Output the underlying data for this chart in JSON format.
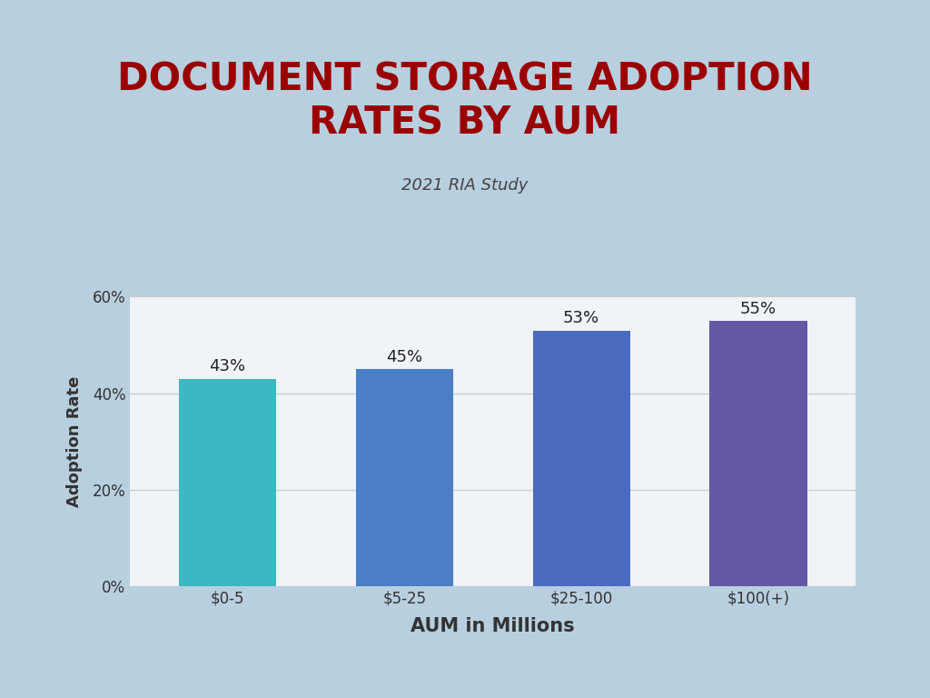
{
  "title": "DOCUMENT STORAGE ADOPTION\nRATES BY AUM",
  "subtitle": "2021 RIA Study",
  "xlabel": "AUM in Millions",
  "ylabel": "Adoption Rate",
  "categories": [
    "$0-5",
    "$5-25",
    "$25-100",
    "$100(+)"
  ],
  "values": [
    43,
    45,
    53,
    55
  ],
  "bar_colors": [
    "#3cb8c2",
    "#4a7ec7",
    "#4a6bbf",
    "#6457a6"
  ],
  "title_color": "#9b0000",
  "subtitle_color": "#444444",
  "label_color": "#222222",
  "axis_text_color": "#333333",
  "ylim": [
    0,
    60
  ],
  "yticks": [
    0,
    20,
    40,
    60
  ],
  "ytick_labels": [
    "0%",
    "20%",
    "40%",
    "60%"
  ],
  "outer_bg_color": "#b8cfe0",
  "inner_bg_color": "#f0f3f7",
  "plot_bg_color": "#f0f3f7",
  "title_fontsize": 30,
  "subtitle_fontsize": 13,
  "xlabel_fontsize": 15,
  "ylabel_fontsize": 13,
  "bar_label_fontsize": 13,
  "tick_fontsize": 12,
  "bar_width": 0.55
}
